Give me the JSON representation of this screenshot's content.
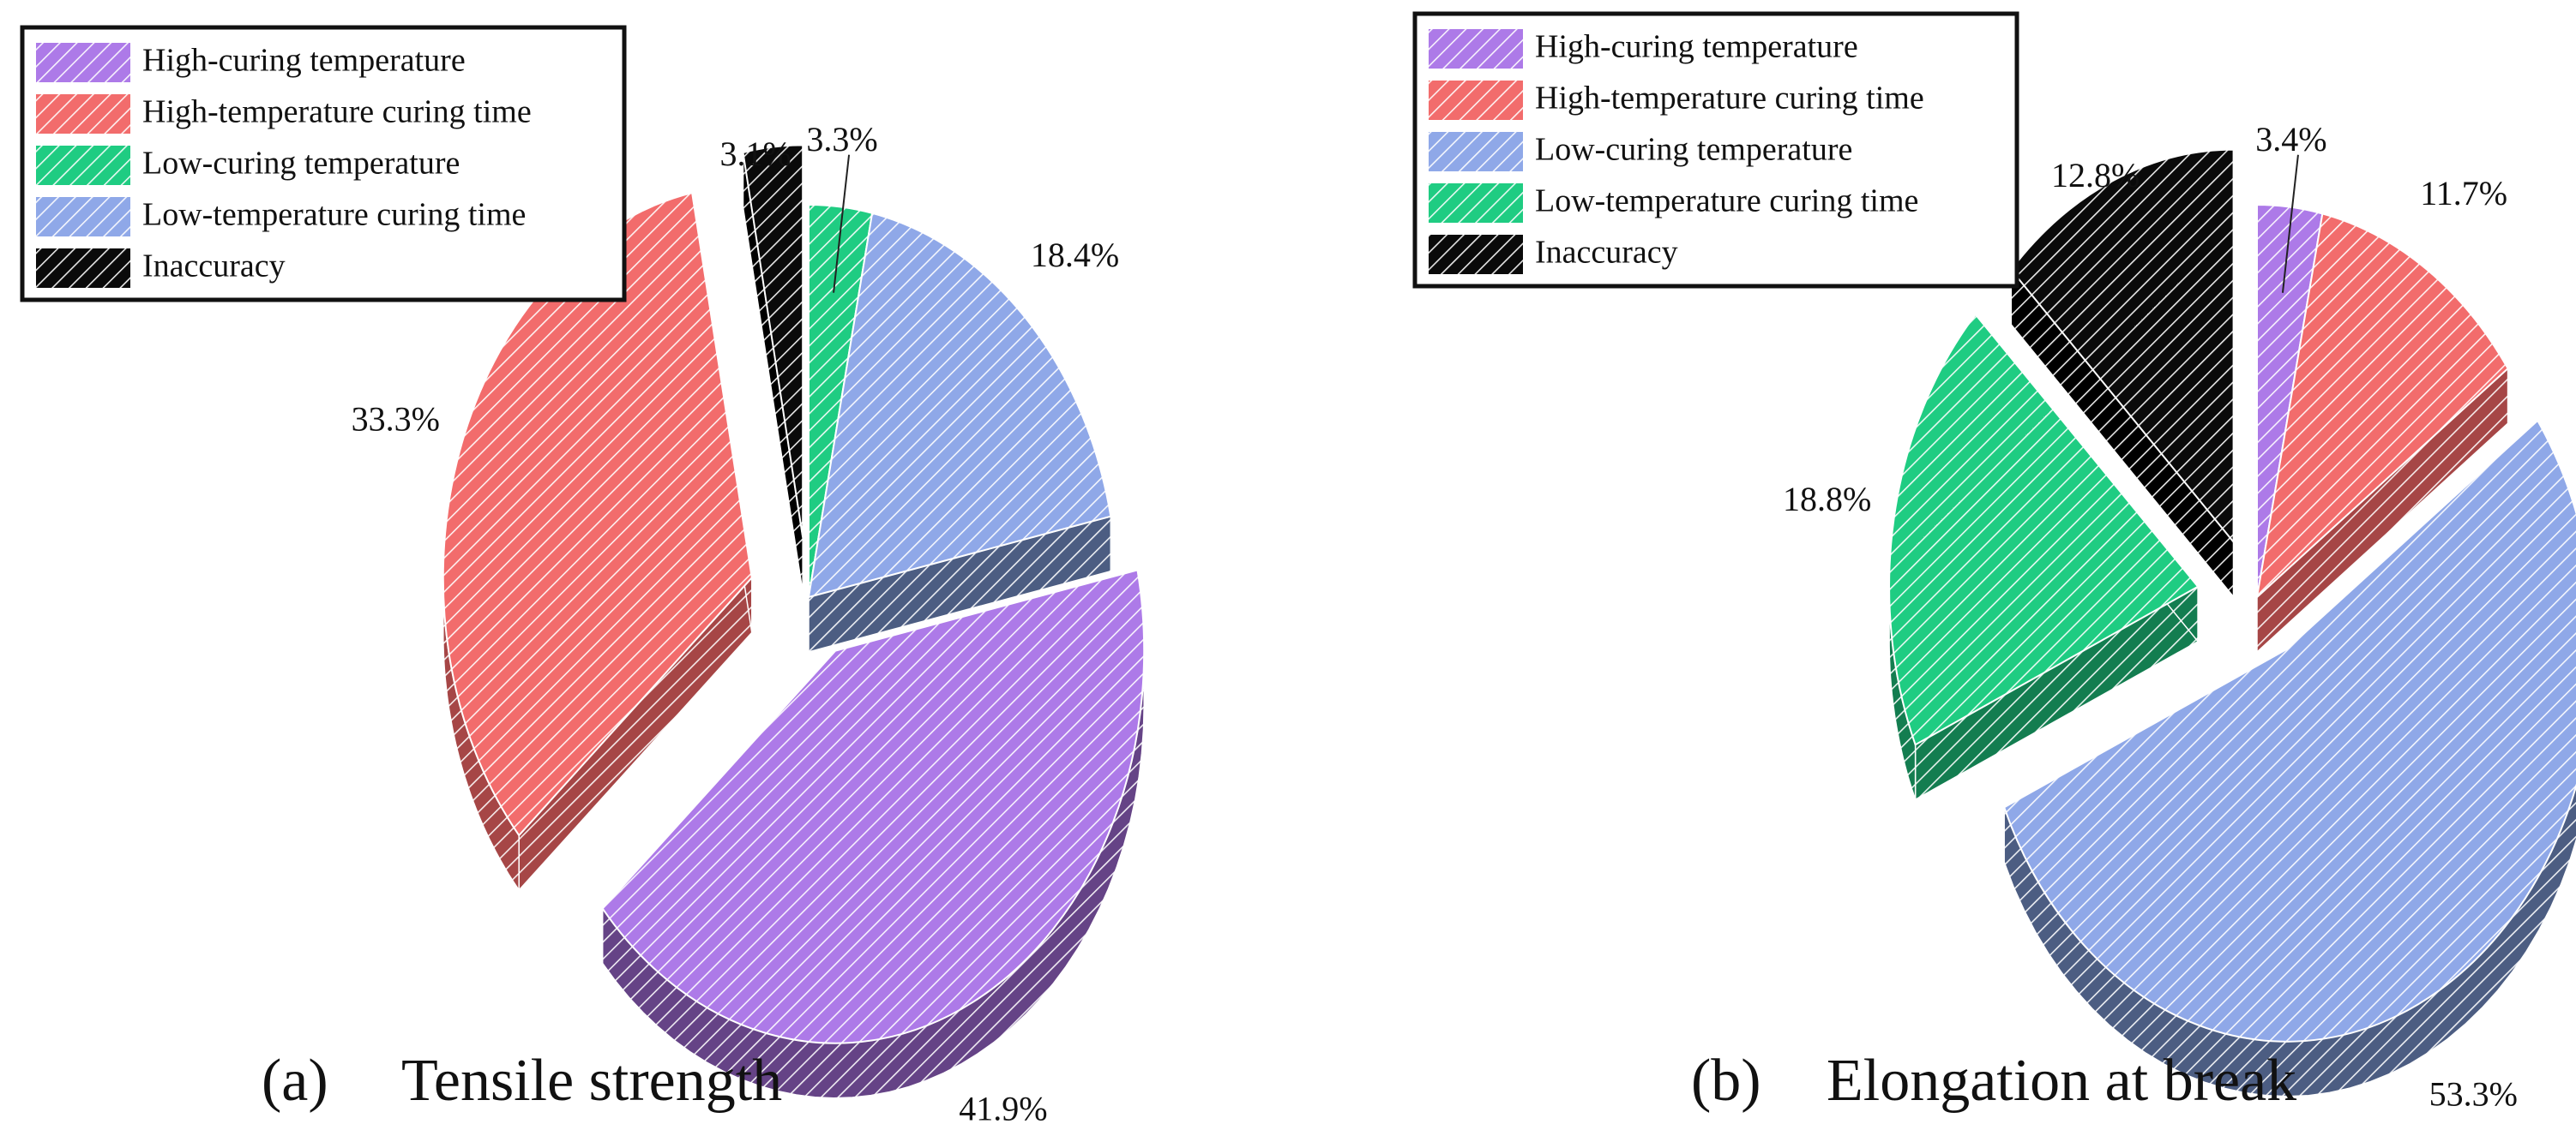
{
  "chart_data": [
    {
      "type": "pie",
      "id": "a",
      "caption_letter": "(a)",
      "caption_text": "Tensile strength",
      "legend": [
        {
          "label": "High-curing temperature",
          "color_key": "purple"
        },
        {
          "label": "High-temperature curing time",
          "color_key": "red"
        },
        {
          "label": "Low-curing temperature",
          "color_key": "green"
        },
        {
          "label": "Low-temperature curing time",
          "color_key": "blue"
        },
        {
          "label": "Inaccuracy",
          "color_key": "black"
        }
      ],
      "slices": [
        {
          "name": "Low-curing temperature",
          "value": 3.3,
          "label": "3.3%",
          "color_key": "green",
          "exploded": false
        },
        {
          "name": "Low-temperature curing time",
          "value": 18.4,
          "label": "18.4%",
          "color_key": "blue",
          "exploded": false
        },
        {
          "name": "High-curing temperature",
          "value": 41.9,
          "label": "41.9%",
          "color_key": "purple",
          "exploded": true
        },
        {
          "name": "High-temperature curing time",
          "value": 33.3,
          "label": "33.3%",
          "color_key": "red",
          "exploded": true
        },
        {
          "name": "Inaccuracy",
          "value": 3.1,
          "label": "3.1%",
          "color_key": "black",
          "exploded": true
        }
      ]
    },
    {
      "type": "pie",
      "id": "b",
      "caption_letter": "(b)",
      "caption_text": "Elongation at break",
      "legend": [
        {
          "label": "High-curing temperature",
          "color_key": "purple"
        },
        {
          "label": "High-temperature curing time",
          "color_key": "red"
        },
        {
          "label": "Low-curing temperature",
          "color_key": "blue"
        },
        {
          "label": "Low-temperature curing time",
          "color_key": "green"
        },
        {
          "label": "Inaccuracy",
          "color_key": "black"
        }
      ],
      "slices": [
        {
          "name": "High-curing temperature",
          "value": 3.4,
          "label": "3.4%",
          "color_key": "purple",
          "exploded": false
        },
        {
          "name": "High-temperature curing time",
          "value": 11.7,
          "label": "11.7%",
          "color_key": "red",
          "exploded": false
        },
        {
          "name": "Low-curing temperature",
          "value": 53.3,
          "label": "53.3%",
          "color_key": "blue",
          "exploded": true
        },
        {
          "name": "Low-temperature curing time",
          "value": 18.8,
          "label": "18.8%",
          "color_key": "green",
          "exploded": true
        },
        {
          "name": "Inaccuracy",
          "value": 12.8,
          "label": "12.8%",
          "color_key": "black",
          "exploded": true
        }
      ]
    }
  ],
  "colors": {
    "purple": {
      "top": "#ad7ae8",
      "side": "#654386"
    },
    "red": {
      "top": "#f26c6c",
      "side": "#a64646"
    },
    "green": {
      "top": "#1fcc82",
      "side": "#137d50"
    },
    "blue": {
      "top": "#8fa8e8",
      "side": "#4c5d82"
    },
    "black": {
      "top": "#0a0a0a",
      "side": "#000000"
    }
  }
}
